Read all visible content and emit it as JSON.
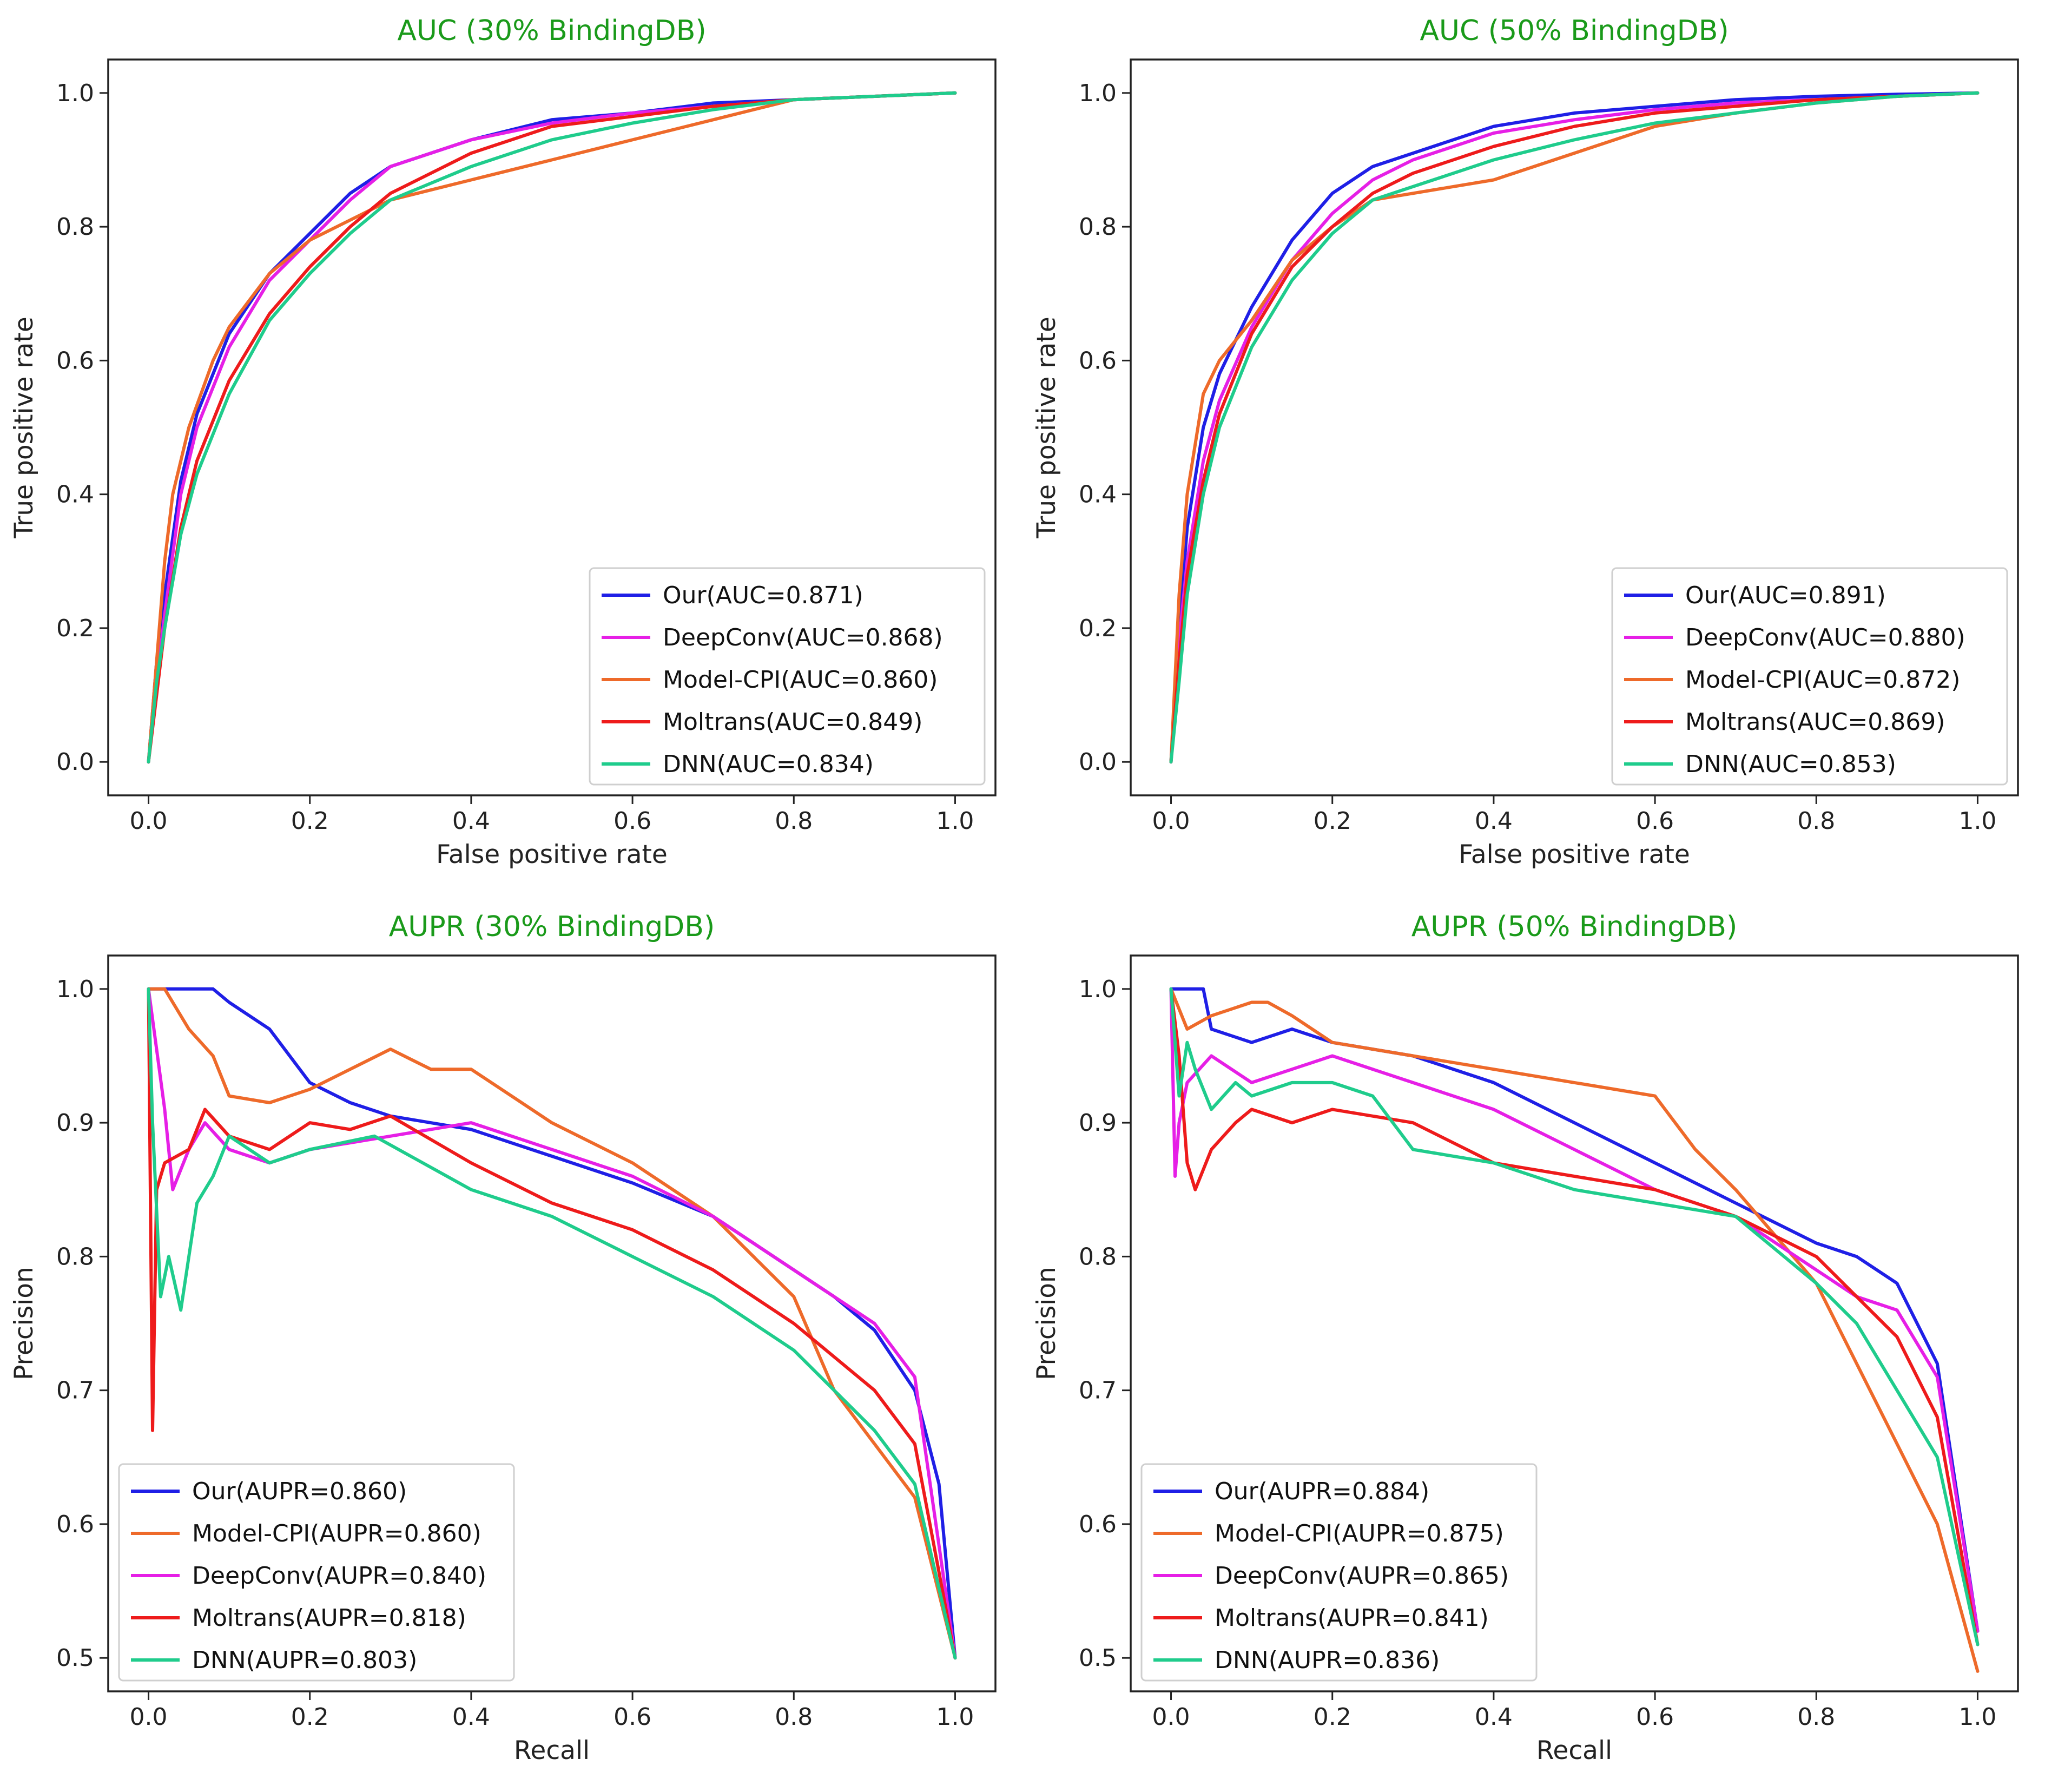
{
  "chart_data": [
    {
      "type": "line",
      "title": "AUC (30% BindingDB)",
      "xlabel": "False positive rate",
      "ylabel": "True positive rate",
      "xlim": [
        -0.05,
        1.05
      ],
      "ylim": [
        -0.05,
        1.05
      ],
      "xticks": [
        "0.0",
        "0.2",
        "0.4",
        "0.6",
        "0.8",
        "1.0"
      ],
      "xtick_values": [
        0.0,
        0.2,
        0.4,
        0.6,
        0.8,
        1.0
      ],
      "yticks": [
        "0.0",
        "0.2",
        "0.4",
        "0.6",
        "0.8",
        "1.0"
      ],
      "ytick_values": [
        0.0,
        0.2,
        0.4,
        0.6,
        0.8,
        1.0
      ],
      "legend_position": "lower-right",
      "series": [
        {
          "name": "Our(AUC=0.871)",
          "color": "#1f1fe6",
          "x": [
            0,
            0.01,
            0.02,
            0.04,
            0.06,
            0.1,
            0.15,
            0.2,
            0.25,
            0.3,
            0.4,
            0.5,
            0.6,
            0.7,
            0.8,
            0.9,
            1.0
          ],
          "y": [
            0,
            0.15,
            0.25,
            0.42,
            0.52,
            0.64,
            0.73,
            0.79,
            0.85,
            0.89,
            0.93,
            0.96,
            0.97,
            0.985,
            0.99,
            0.995,
            1.0
          ]
        },
        {
          "name": "DeepConv(AUC=0.868)",
          "color": "#e61fe6",
          "x": [
            0,
            0.01,
            0.02,
            0.04,
            0.06,
            0.1,
            0.15,
            0.2,
            0.25,
            0.3,
            0.4,
            0.5,
            0.6,
            0.7,
            0.8,
            0.9,
            1.0
          ],
          "y": [
            0,
            0.12,
            0.22,
            0.4,
            0.5,
            0.62,
            0.72,
            0.78,
            0.84,
            0.89,
            0.93,
            0.955,
            0.97,
            0.98,
            0.99,
            0.995,
            1.0
          ]
        },
        {
          "name": "Model-CPI(AUC=0.860)",
          "color": "#ee6a2a",
          "x": [
            0,
            0.01,
            0.02,
            0.03,
            0.05,
            0.08,
            0.1,
            0.15,
            0.2,
            0.3,
            0.4,
            0.5,
            0.6,
            0.7,
            0.8,
            0.9,
            1.0
          ],
          "y": [
            0,
            0.15,
            0.3,
            0.4,
            0.5,
            0.6,
            0.65,
            0.73,
            0.78,
            0.84,
            0.87,
            0.9,
            0.93,
            0.96,
            0.99,
            0.995,
            1.0
          ]
        },
        {
          "name": "Moltrans(AUC=0.849)",
          "color": "#ee1b1b",
          "x": [
            0,
            0.01,
            0.02,
            0.04,
            0.06,
            0.1,
            0.15,
            0.2,
            0.25,
            0.3,
            0.4,
            0.5,
            0.6,
            0.7,
            0.8,
            0.9,
            1.0
          ],
          "y": [
            0,
            0.1,
            0.2,
            0.35,
            0.45,
            0.57,
            0.67,
            0.74,
            0.8,
            0.85,
            0.91,
            0.95,
            0.965,
            0.98,
            0.99,
            0.995,
            1.0
          ]
        },
        {
          "name": "DNN(AUC=0.834)",
          "color": "#1fcc8c",
          "x": [
            0,
            0.01,
            0.02,
            0.04,
            0.06,
            0.1,
            0.15,
            0.2,
            0.25,
            0.3,
            0.4,
            0.5,
            0.6,
            0.7,
            0.8,
            0.9,
            1.0
          ],
          "y": [
            0,
            0.12,
            0.2,
            0.34,
            0.43,
            0.55,
            0.66,
            0.73,
            0.79,
            0.84,
            0.89,
            0.93,
            0.955,
            0.975,
            0.99,
            0.995,
            1.0
          ]
        }
      ]
    },
    {
      "type": "line",
      "title": "AUC (50% BindingDB)",
      "xlabel": "False positive rate",
      "ylabel": "True positive rate",
      "xlim": [
        -0.05,
        1.05
      ],
      "ylim": [
        -0.05,
        1.05
      ],
      "xticks": [
        "0.0",
        "0.2",
        "0.4",
        "0.6",
        "0.8",
        "1.0"
      ],
      "xtick_values": [
        0.0,
        0.2,
        0.4,
        0.6,
        0.8,
        1.0
      ],
      "yticks": [
        "0.0",
        "0.2",
        "0.4",
        "0.6",
        "0.8",
        "1.0"
      ],
      "ytick_values": [
        0.0,
        0.2,
        0.4,
        0.6,
        0.8,
        1.0
      ],
      "legend_position": "lower-right",
      "series": [
        {
          "name": "Our(AUC=0.891)",
          "color": "#1f1fe6",
          "x": [
            0,
            0.01,
            0.02,
            0.04,
            0.06,
            0.1,
            0.15,
            0.2,
            0.25,
            0.3,
            0.4,
            0.5,
            0.6,
            0.7,
            0.8,
            0.9,
            1.0
          ],
          "y": [
            0,
            0.2,
            0.35,
            0.5,
            0.58,
            0.68,
            0.78,
            0.85,
            0.89,
            0.91,
            0.95,
            0.97,
            0.98,
            0.99,
            0.995,
            0.998,
            1.0
          ]
        },
        {
          "name": "DeepConv(AUC=0.880)",
          "color": "#e61fe6",
          "x": [
            0,
            0.01,
            0.02,
            0.04,
            0.06,
            0.1,
            0.15,
            0.2,
            0.25,
            0.3,
            0.4,
            0.5,
            0.6,
            0.7,
            0.8,
            0.9,
            1.0
          ],
          "y": [
            0,
            0.18,
            0.3,
            0.45,
            0.54,
            0.65,
            0.75,
            0.82,
            0.87,
            0.9,
            0.94,
            0.96,
            0.975,
            0.985,
            0.99,
            0.995,
            1.0
          ]
        },
        {
          "name": "Model-CPI(AUC=0.872)",
          "color": "#ee6a2a",
          "x": [
            0,
            0.01,
            0.02,
            0.04,
            0.06,
            0.1,
            0.15,
            0.2,
            0.25,
            0.3,
            0.4,
            0.5,
            0.6,
            0.7,
            0.8,
            0.9,
            1.0
          ],
          "y": [
            0,
            0.25,
            0.4,
            0.55,
            0.6,
            0.66,
            0.75,
            0.8,
            0.84,
            0.85,
            0.87,
            0.91,
            0.95,
            0.97,
            0.985,
            0.995,
            1.0
          ]
        },
        {
          "name": "Moltrans(AUC=0.869)",
          "color": "#ee1b1b",
          "x": [
            0,
            0.01,
            0.02,
            0.04,
            0.06,
            0.1,
            0.15,
            0.2,
            0.25,
            0.3,
            0.4,
            0.5,
            0.6,
            0.7,
            0.8,
            0.9,
            1.0
          ],
          "y": [
            0,
            0.15,
            0.28,
            0.42,
            0.52,
            0.64,
            0.74,
            0.8,
            0.85,
            0.88,
            0.92,
            0.95,
            0.97,
            0.98,
            0.99,
            0.995,
            1.0
          ]
        },
        {
          "name": "DNN(AUC=0.853)",
          "color": "#1fcc8c",
          "x": [
            0,
            0.01,
            0.02,
            0.04,
            0.06,
            0.1,
            0.15,
            0.2,
            0.25,
            0.3,
            0.4,
            0.5,
            0.6,
            0.7,
            0.8,
            0.9,
            1.0
          ],
          "y": [
            0,
            0.12,
            0.25,
            0.4,
            0.5,
            0.62,
            0.72,
            0.79,
            0.84,
            0.86,
            0.9,
            0.93,
            0.955,
            0.97,
            0.985,
            0.995,
            1.0
          ]
        }
      ]
    },
    {
      "type": "line",
      "title": "AUPR (30% BindingDB)",
      "xlabel": "Recall",
      "ylabel": "Precision",
      "xlim": [
        -0.05,
        1.05
      ],
      "ylim": [
        0.475,
        1.025
      ],
      "xticks": [
        "0.0",
        "0.2",
        "0.4",
        "0.6",
        "0.8",
        "1.0"
      ],
      "xtick_values": [
        0.0,
        0.2,
        0.4,
        0.6,
        0.8,
        1.0
      ],
      "yticks": [
        "0.5",
        "0.6",
        "0.7",
        "0.8",
        "0.9",
        "1.0"
      ],
      "ytick_values": [
        0.5,
        0.6,
        0.7,
        0.8,
        0.9,
        1.0
      ],
      "legend_position": "lower-left",
      "series": [
        {
          "name": "Our(AUPR=0.860)",
          "color": "#1f1fe6",
          "x": [
            0,
            0.02,
            0.05,
            0.08,
            0.1,
            0.15,
            0.2,
            0.25,
            0.3,
            0.4,
            0.5,
            0.6,
            0.7,
            0.8,
            0.85,
            0.9,
            0.95,
            0.98,
            1.0
          ],
          "y": [
            1.0,
            1.0,
            1.0,
            1.0,
            0.99,
            0.97,
            0.93,
            0.915,
            0.905,
            0.895,
            0.875,
            0.855,
            0.83,
            0.79,
            0.77,
            0.745,
            0.7,
            0.63,
            0.5
          ]
        },
        {
          "name": "Model-CPI(AUPR=0.860)",
          "color": "#ee6a2a",
          "x": [
            0,
            0.02,
            0.05,
            0.08,
            0.1,
            0.15,
            0.2,
            0.25,
            0.3,
            0.35,
            0.4,
            0.45,
            0.5,
            0.6,
            0.7,
            0.75,
            0.8,
            0.85,
            0.9,
            0.95,
            1.0
          ],
          "y": [
            1.0,
            1.0,
            0.97,
            0.95,
            0.92,
            0.915,
            0.925,
            0.94,
            0.955,
            0.94,
            0.94,
            0.92,
            0.9,
            0.87,
            0.83,
            0.8,
            0.77,
            0.7,
            0.66,
            0.62,
            0.5
          ]
        },
        {
          "name": "DeepConv(AUPR=0.840)",
          "color": "#e61fe6",
          "x": [
            0,
            0.02,
            0.03,
            0.05,
            0.07,
            0.1,
            0.15,
            0.2,
            0.3,
            0.4,
            0.5,
            0.6,
            0.7,
            0.8,
            0.85,
            0.9,
            0.95,
            1.0
          ],
          "y": [
            1.0,
            0.91,
            0.85,
            0.88,
            0.9,
            0.88,
            0.87,
            0.88,
            0.89,
            0.9,
            0.88,
            0.86,
            0.83,
            0.79,
            0.77,
            0.75,
            0.71,
            0.5
          ]
        },
        {
          "name": "Moltrans(AUPR=0.818)",
          "color": "#ee1b1b",
          "x": [
            0,
            0.005,
            0.01,
            0.02,
            0.05,
            0.07,
            0.1,
            0.15,
            0.2,
            0.25,
            0.3,
            0.4,
            0.5,
            0.6,
            0.7,
            0.8,
            0.9,
            0.95,
            1.0
          ],
          "y": [
            1.0,
            0.67,
            0.85,
            0.87,
            0.88,
            0.91,
            0.89,
            0.88,
            0.9,
            0.895,
            0.905,
            0.87,
            0.84,
            0.82,
            0.79,
            0.75,
            0.7,
            0.66,
            0.5
          ]
        },
        {
          "name": "DNN(AUPR=0.803)",
          "color": "#1fcc8c",
          "x": [
            0,
            0.005,
            0.015,
            0.025,
            0.04,
            0.06,
            0.08,
            0.1,
            0.15,
            0.2,
            0.28,
            0.4,
            0.5,
            0.6,
            0.7,
            0.8,
            0.9,
            0.95,
            1.0
          ],
          "y": [
            1.0,
            0.9,
            0.77,
            0.8,
            0.76,
            0.84,
            0.86,
            0.89,
            0.87,
            0.88,
            0.89,
            0.85,
            0.83,
            0.8,
            0.77,
            0.73,
            0.67,
            0.63,
            0.5
          ]
        }
      ]
    },
    {
      "type": "line",
      "title": "AUPR (50% BindingDB)",
      "xlabel": "Recall",
      "ylabel": "Precision",
      "xlim": [
        -0.05,
        1.05
      ],
      "ylim": [
        0.475,
        1.025
      ],
      "xticks": [
        "0.0",
        "0.2",
        "0.4",
        "0.6",
        "0.8",
        "1.0"
      ],
      "xtick_values": [
        0.0,
        0.2,
        0.4,
        0.6,
        0.8,
        1.0
      ],
      "yticks": [
        "0.5",
        "0.6",
        "0.7",
        "0.8",
        "0.9",
        "1.0"
      ],
      "ytick_values": [
        0.5,
        0.6,
        0.7,
        0.8,
        0.9,
        1.0
      ],
      "legend_position": "lower-left",
      "series": [
        {
          "name": "Our(AUPR=0.884)",
          "color": "#1f1fe6",
          "x": [
            0,
            0.02,
            0.04,
            0.05,
            0.1,
            0.15,
            0.2,
            0.3,
            0.4,
            0.5,
            0.6,
            0.7,
            0.8,
            0.85,
            0.9,
            0.95,
            1.0
          ],
          "y": [
            1.0,
            1.0,
            1.0,
            0.97,
            0.96,
            0.97,
            0.96,
            0.95,
            0.93,
            0.9,
            0.87,
            0.84,
            0.81,
            0.8,
            0.78,
            0.72,
            0.52
          ]
        },
        {
          "name": "Model-CPI(AUPR=0.875)",
          "color": "#ee6a2a",
          "x": [
            0,
            0.02,
            0.05,
            0.1,
            0.12,
            0.15,
            0.2,
            0.3,
            0.4,
            0.5,
            0.6,
            0.65,
            0.7,
            0.8,
            0.85,
            0.9,
            0.95,
            1.0
          ],
          "y": [
            1.0,
            0.97,
            0.98,
            0.99,
            0.99,
            0.98,
            0.96,
            0.95,
            0.94,
            0.93,
            0.92,
            0.88,
            0.85,
            0.78,
            0.72,
            0.66,
            0.6,
            0.49
          ]
        },
        {
          "name": "DeepConv(AUPR=0.865)",
          "color": "#e61fe6",
          "x": [
            0,
            0.005,
            0.01,
            0.02,
            0.05,
            0.1,
            0.15,
            0.2,
            0.3,
            0.4,
            0.5,
            0.6,
            0.7,
            0.8,
            0.85,
            0.9,
            0.95,
            1.0
          ],
          "y": [
            1.0,
            0.86,
            0.9,
            0.93,
            0.95,
            0.93,
            0.94,
            0.95,
            0.93,
            0.91,
            0.88,
            0.85,
            0.83,
            0.79,
            0.77,
            0.76,
            0.71,
            0.52
          ]
        },
        {
          "name": "Moltrans(AUPR=0.841)",
          "color": "#ee1b1b",
          "x": [
            0,
            0.01,
            0.02,
            0.03,
            0.05,
            0.08,
            0.1,
            0.15,
            0.2,
            0.3,
            0.4,
            0.5,
            0.6,
            0.7,
            0.8,
            0.85,
            0.9,
            0.95,
            1.0
          ],
          "y": [
            1.0,
            0.95,
            0.87,
            0.85,
            0.88,
            0.9,
            0.91,
            0.9,
            0.91,
            0.9,
            0.87,
            0.86,
            0.85,
            0.83,
            0.8,
            0.77,
            0.74,
            0.68,
            0.51
          ]
        },
        {
          "name": "DNN(AUPR=0.836)",
          "color": "#1fcc8c",
          "x": [
            0,
            0.01,
            0.02,
            0.03,
            0.05,
            0.08,
            0.1,
            0.15,
            0.2,
            0.25,
            0.3,
            0.4,
            0.5,
            0.6,
            0.7,
            0.8,
            0.85,
            0.9,
            0.95,
            1.0
          ],
          "y": [
            1.0,
            0.92,
            0.96,
            0.94,
            0.91,
            0.93,
            0.92,
            0.93,
            0.93,
            0.92,
            0.88,
            0.87,
            0.85,
            0.84,
            0.83,
            0.78,
            0.75,
            0.7,
            0.65,
            0.51
          ]
        }
      ]
    }
  ]
}
